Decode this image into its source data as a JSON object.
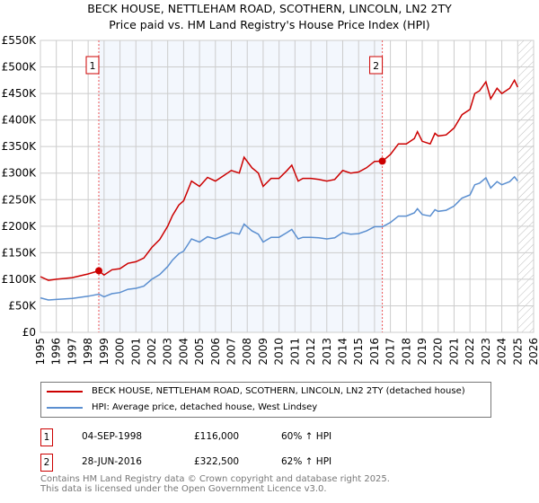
{
  "chart_data": {
    "type": "line",
    "title": "BECK HOUSE, NETTLEHAM ROAD, SCOTHERN, LINCOLN, LN2 2TY",
    "subtitle": "Price paid vs. HM Land Registry's House Price Index (HPI)",
    "xlim": [
      1995,
      2026
    ],
    "ylim": [
      0,
      550000
    ],
    "yticks": [
      "£0",
      "£50K",
      "£100K",
      "£150K",
      "£200K",
      "£250K",
      "£300K",
      "£350K",
      "£400K",
      "£450K",
      "£500K",
      "£550K"
    ],
    "xticks": [
      "1995",
      "1996",
      "1997",
      "1998",
      "1999",
      "2000",
      "2001",
      "2002",
      "2003",
      "2004",
      "2005",
      "2006",
      "2007",
      "2008",
      "2009",
      "2010",
      "2011",
      "2012",
      "2013",
      "2014",
      "2015",
      "2016",
      "2017",
      "2018",
      "2019",
      "2020",
      "2021",
      "2022",
      "2023",
      "2024",
      "2025",
      "2026"
    ],
    "grid": true,
    "x": [
      1995,
      1995.5,
      1996,
      1997,
      1998,
      1998.67,
      1999,
      1999.5,
      2000,
      2000.5,
      2001,
      2001.5,
      2002,
      2002.5,
      2003,
      2003.3,
      2003.7,
      2004,
      2004.5,
      2005,
      2005.5,
      2006,
      2006.5,
      2007,
      2007.5,
      2007.8,
      2008.3,
      2008.7,
      2009,
      2009.5,
      2010,
      2010.5,
      2010.8,
      2011.2,
      2011.5,
      2012,
      2012.5,
      2013,
      2013.5,
      2014,
      2014.5,
      2015,
      2015.5,
      2016,
      2016.5,
      2017,
      2017.5,
      2018,
      2018.5,
      2018.7,
      2019,
      2019.5,
      2019.8,
      2020,
      2020.5,
      2021,
      2021.5,
      2022,
      2022.3,
      2022.6,
      2023,
      2023.3,
      2023.7,
      2024,
      2024.5,
      2024.8,
      2025
    ],
    "series": [
      {
        "name": "BECK HOUSE, NETTLEHAM ROAD, SCOTHERN, LINCOLN, LN2 2TY (detached house)",
        "color": "#cc0000",
        "values": [
          105000,
          98000,
          100000,
          103000,
          110000,
          116000,
          108000,
          118000,
          120000,
          130000,
          133000,
          140000,
          160000,
          175000,
          200000,
          220000,
          240000,
          248000,
          285000,
          275000,
          292000,
          285000,
          295000,
          305000,
          300000,
          330000,
          310000,
          300000,
          275000,
          290000,
          290000,
          305000,
          315000,
          285000,
          290000,
          290000,
          288000,
          285000,
          288000,
          305000,
          300000,
          302000,
          310000,
          322000,
          322500,
          335000,
          355000,
          355000,
          365000,
          378000,
          360000,
          355000,
          375000,
          370000,
          372000,
          385000,
          410000,
          420000,
          450000,
          455000,
          472000,
          440000,
          460000,
          450000,
          460000,
          475000,
          462000
        ]
      },
      {
        "name": "HPI: Average price, detached house, West Lindsey",
        "color": "#5b8fd0",
        "values": [
          65000,
          61000,
          62000,
          64000,
          68000,
          72000,
          67000,
          73000,
          75000,
          81000,
          83000,
          87000,
          100000,
          109000,
          124000,
          136000,
          148000,
          153000,
          176000,
          170000,
          180000,
          176000,
          182000,
          188000,
          185000,
          204000,
          191000,
          185000,
          170000,
          179000,
          179000,
          188000,
          194000,
          176000,
          179000,
          179000,
          178000,
          176000,
          178000,
          188000,
          185000,
          186000,
          191000,
          199000,
          199000,
          207000,
          219000,
          219000,
          225000,
          233000,
          222000,
          219000,
          231000,
          228000,
          230000,
          238000,
          253000,
          259000,
          278000,
          281000,
          291000,
          272000,
          284000,
          278000,
          284000,
          293000,
          285000
        ]
      }
    ],
    "sales": [
      {
        "id": "1",
        "x": 1998.67,
        "value": 116000,
        "date": "04-SEP-1998",
        "price": "£116,000",
        "hpi": "60% ↑ HPI"
      },
      {
        "id": "2",
        "x": 2016.49,
        "value": 322500,
        "date": "28-JUN-2016",
        "price": "£322,500",
        "hpi": "62% ↑ HPI"
      }
    ],
    "shaded_range": [
      1998.67,
      2016.49
    ],
    "forecast_from": 2025.05
  },
  "footer": {
    "line1": "Contains HM Land Registry data © Crown copyright and database right 2025.",
    "line2": "This data is licensed under the Open Government Licence v3.0."
  }
}
